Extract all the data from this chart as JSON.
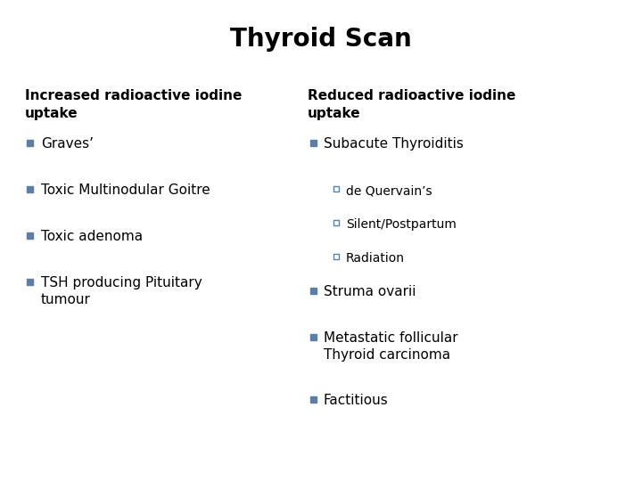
{
  "title": "Thyroid Scan",
  "title_fontsize": 20,
  "title_fontweight": "bold",
  "background_color": "#ffffff",
  "text_color": "#000000",
  "bullet_color_filled": "#5b7fa6",
  "bullet_color_outline": "#5b7fa6",
  "left_header": "Increased radioactive iodine\nuptake",
  "left_items": [
    "Graves’",
    "Toxic Multinodular Goitre",
    "Toxic adenoma",
    "TSH producing Pituitary\ntumour"
  ],
  "right_header": "Reduced radioactive iodine\nuptake",
  "right_main_items": [
    {
      "text": "Subacute Thyroiditis",
      "sub": [
        "de Quervain’s",
        "Silent/Postpartum",
        "Radiation"
      ]
    },
    {
      "text": "Struma ovarii",
      "sub": []
    },
    {
      "text": "Metastatic follicular\nThyroid carcinoma",
      "sub": []
    },
    {
      "text": "Factitious",
      "sub": []
    }
  ],
  "header_fontsize": 11,
  "item_fontsize": 11,
  "sub_fontsize": 10
}
